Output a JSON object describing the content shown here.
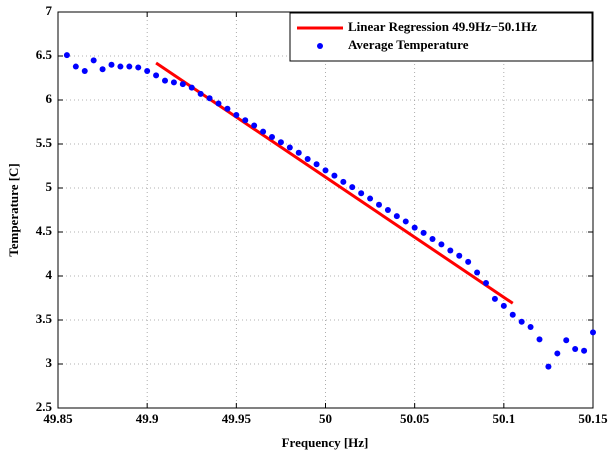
{
  "chart_data": {
    "type": "line",
    "xlabel": "Frequency [Hz]",
    "ylabel": "Temperature [C]",
    "xlim": [
      49.85,
      50.15
    ],
    "xticks": [
      49.85,
      49.9,
      49.95,
      50,
      50.05,
      50.1,
      50.15
    ],
    "ylim": [
      2.5,
      7
    ],
    "yticks": [
      2.5,
      3,
      3.5,
      4,
      4.5,
      5,
      5.5,
      6,
      6.5,
      7
    ],
    "grid": true,
    "legend": "upper right",
    "series": [
      {
        "name": "Linear Regression 49.9Hz−50.1Hz",
        "color": "#ff0000",
        "mode": "line",
        "x": [
          49.905,
          50.105
        ],
        "values": [
          6.42,
          3.69
        ]
      },
      {
        "name": "Average Temperature",
        "color": "#0000ff",
        "mode": "markers",
        "x": [
          49.855,
          49.86,
          49.865,
          49.87,
          49.875,
          49.88,
          49.885,
          49.89,
          49.895,
          49.9,
          49.905,
          49.91,
          49.915,
          49.92,
          49.925,
          49.93,
          49.935,
          49.94,
          49.945,
          49.95,
          49.955,
          49.96,
          49.965,
          49.97,
          49.975,
          49.98,
          49.985,
          49.99,
          49.995,
          50,
          50.005,
          50.01,
          50.015,
          50.02,
          50.025,
          50.03,
          50.035,
          50.04,
          50.045,
          50.05,
          50.055,
          50.06,
          50.065,
          50.07,
          50.075,
          50.08,
          50.085,
          50.09,
          50.095,
          50.1,
          50.105,
          50.11,
          50.115,
          50.12,
          50.125,
          50.13,
          50.135,
          50.14,
          50.145,
          50.15
        ],
        "values": [
          6.51,
          6.38,
          6.33,
          6.45,
          6.35,
          6.4,
          6.38,
          6.38,
          6.37,
          6.33,
          6.28,
          6.22,
          6.2,
          6.18,
          6.14,
          6.07,
          6.02,
          5.96,
          5.9,
          5.83,
          5.77,
          5.71,
          5.64,
          5.58,
          5.52,
          5.46,
          5.4,
          5.33,
          5.27,
          5.2,
          5.14,
          5.07,
          5.01,
          4.94,
          4.88,
          4.81,
          4.75,
          4.68,
          4.62,
          4.55,
          4.49,
          4.42,
          4.36,
          4.29,
          4.23,
          4.16,
          4.04,
          3.92,
          3.74,
          3.66,
          3.56,
          3.48,
          3.42,
          3.28,
          2.97,
          3.12,
          3.27,
          3.17,
          3.15,
          3.36
        ]
      }
    ]
  }
}
